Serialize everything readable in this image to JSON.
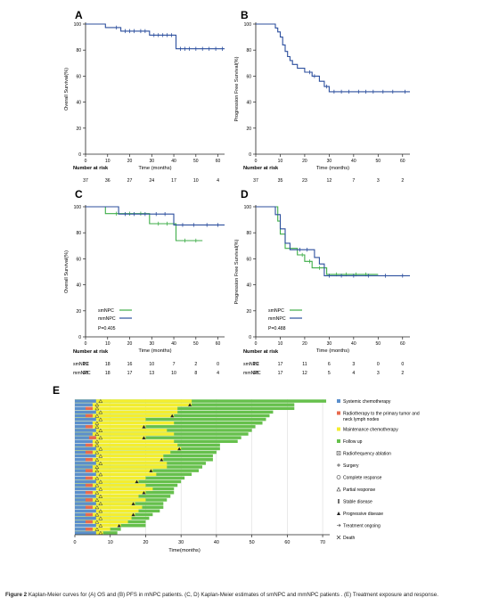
{
  "figure": {
    "caption_lead": "Figure 2",
    "caption_text": "Kaplan-Meier curves for (A) OS and (B) PFS in mNPC patients. (C, D) Kaplan-Meier estimates of smNPC and mmNPC patients . (E) Treatment exposure and response."
  },
  "chart_data": [
    {
      "panel": "A",
      "type": "line",
      "ylabel": "Overall Survival(%)",
      "xlabel": "Time (months)",
      "xlim": [
        0,
        63
      ],
      "ylim": [
        0,
        100
      ],
      "xticks": [
        0,
        10,
        20,
        30,
        40,
        50,
        60
      ],
      "yticks": [
        0,
        20,
        40,
        60,
        80,
        100
      ],
      "risk_title": "Number at risk",
      "risk_rows": [
        {
          "label": "",
          "values": [
            "37",
            "36",
            "27",
            "24",
            "17",
            "10",
            "4"
          ]
        }
      ],
      "series": [
        {
          "color": "#2c4f9e",
          "steps": [
            [
              0,
              100
            ],
            [
              9,
              100
            ],
            [
              9,
              97.3
            ],
            [
              16,
              97.3
            ],
            [
              16,
              94.6
            ],
            [
              29,
              94.6
            ],
            [
              29,
              91.5
            ],
            [
              41,
              91.5
            ],
            [
              41,
              81
            ],
            [
              63,
              81
            ]
          ],
          "censors": [
            [
              14,
              97.3
            ],
            [
              18,
              94.6
            ],
            [
              20,
              94.6
            ],
            [
              22,
              94.6
            ],
            [
              25,
              94.6
            ],
            [
              27,
              94.6
            ],
            [
              31,
              91.5
            ],
            [
              33,
              91.5
            ],
            [
              35,
              91.5
            ],
            [
              37,
              91.5
            ],
            [
              39,
              91.5
            ],
            [
              43,
              81
            ],
            [
              45,
              81
            ],
            [
              47,
              81
            ],
            [
              50,
              81
            ],
            [
              53,
              81
            ],
            [
              56,
              81
            ],
            [
              59,
              81
            ],
            [
              62,
              81
            ]
          ]
        }
      ]
    },
    {
      "panel": "B",
      "type": "line",
      "ylabel": "Progression Free Survival(%)",
      "xlabel": "Time (months)",
      "xlim": [
        0,
        63
      ],
      "ylim": [
        0,
        100
      ],
      "xticks": [
        0,
        10,
        20,
        30,
        40,
        50,
        60
      ],
      "yticks": [
        0,
        20,
        40,
        60,
        80,
        100
      ],
      "risk_title": "Number at risk",
      "risk_rows": [
        {
          "label": "",
          "values": [
            "37",
            "35",
            "23",
            "12",
            "7",
            "3",
            "2"
          ]
        }
      ],
      "series": [
        {
          "color": "#2c4f9e",
          "steps": [
            [
              0,
              100
            ],
            [
              8,
              100
            ],
            [
              8,
              97
            ],
            [
              9,
              97
            ],
            [
              9,
              94
            ],
            [
              10,
              94
            ],
            [
              10,
              90
            ],
            [
              11,
              90
            ],
            [
              11,
              84
            ],
            [
              12,
              84
            ],
            [
              12,
              79
            ],
            [
              13,
              79
            ],
            [
              13,
              75
            ],
            [
              14,
              75
            ],
            [
              14,
              72
            ],
            [
              15,
              72
            ],
            [
              15,
              69
            ],
            [
              17,
              69
            ],
            [
              17,
              66
            ],
            [
              20,
              66
            ],
            [
              20,
              63
            ],
            [
              23,
              63
            ],
            [
              23,
              60
            ],
            [
              26,
              60
            ],
            [
              26,
              56
            ],
            [
              28,
              56
            ],
            [
              28,
              52
            ],
            [
              30,
              52
            ],
            [
              30,
              48
            ],
            [
              63,
              48
            ]
          ],
          "censors": [
            [
              22,
              63
            ],
            [
              24,
              60
            ],
            [
              29,
              52
            ],
            [
              32,
              48
            ],
            [
              35,
              48
            ],
            [
              38,
              48
            ],
            [
              42,
              48
            ],
            [
              45,
              48
            ],
            [
              48,
              48
            ],
            [
              52,
              48
            ],
            [
              56,
              48
            ],
            [
              61,
              48
            ]
          ]
        }
      ]
    },
    {
      "panel": "C",
      "type": "line",
      "ylabel": "Overall Survival(%)",
      "xlabel": "Time (months)",
      "xlim": [
        0,
        63
      ],
      "ylim": [
        0,
        100
      ],
      "xticks": [
        0,
        10,
        20,
        30,
        40,
        50,
        60
      ],
      "yticks": [
        0,
        20,
        40,
        60,
        80,
        100
      ],
      "legend": [
        "smNPC",
        "mmNPC"
      ],
      "pvalue": "P=0.405",
      "risk_title": "Number at risk",
      "risk_rows": [
        {
          "label": "smNPC",
          "values": [
            "19",
            "18",
            "16",
            "10",
            "7",
            "2",
            "0"
          ]
        },
        {
          "label": "mmNPC",
          "values": [
            "18",
            "18",
            "17",
            "13",
            "10",
            "8",
            "4"
          ]
        }
      ],
      "series": [
        {
          "name": "smNPC",
          "color": "#3fae49",
          "steps": [
            [
              0,
              100
            ],
            [
              9,
              100
            ],
            [
              9,
              94.7
            ],
            [
              29,
              94.7
            ],
            [
              29,
              87
            ],
            [
              41,
              87
            ],
            [
              41,
              74
            ],
            [
              53,
              74
            ]
          ],
          "censors": [
            [
              14,
              94.7
            ],
            [
              20,
              94.7
            ],
            [
              25,
              94.7
            ],
            [
              33,
              87
            ],
            [
              37,
              87
            ],
            [
              45,
              74
            ],
            [
              50,
              74
            ]
          ]
        },
        {
          "name": "mmNPC",
          "color": "#2c4f9e",
          "steps": [
            [
              0,
              100
            ],
            [
              15,
              100
            ],
            [
              15,
              94.4
            ],
            [
              40,
              94.4
            ],
            [
              40,
              86
            ],
            [
              63,
              86
            ]
          ],
          "censors": [
            [
              18,
              94.4
            ],
            [
              22,
              94.4
            ],
            [
              27,
              94.4
            ],
            [
              32,
              94.4
            ],
            [
              36,
              94.4
            ],
            [
              44,
              86
            ],
            [
              49,
              86
            ],
            [
              55,
              86
            ],
            [
              60,
              86
            ]
          ]
        }
      ]
    },
    {
      "panel": "D",
      "type": "line",
      "ylabel": "Progression Free Survival(%)",
      "xlabel": "Time (months)",
      "xlim": [
        0,
        63
      ],
      "ylim": [
        0,
        100
      ],
      "xticks": [
        0,
        10,
        20,
        30,
        40,
        50,
        60
      ],
      "yticks": [
        0,
        20,
        40,
        60,
        80,
        100
      ],
      "legend": [
        "smNPC",
        "mmNPC"
      ],
      "pvalue": "P=0.488",
      "risk_title": "Number at risk",
      "risk_rows": [
        {
          "label": "smNPC",
          "values": [
            "19",
            "17",
            "11",
            "6",
            "3",
            "0",
            "0"
          ]
        },
        {
          "label": "mmNPC",
          "values": [
            "18",
            "17",
            "12",
            "5",
            "4",
            "3",
            "2"
          ]
        }
      ],
      "series": [
        {
          "name": "smNPC",
          "color": "#3fae49",
          "steps": [
            [
              0,
              100
            ],
            [
              9,
              100
            ],
            [
              9,
              89
            ],
            [
              10,
              89
            ],
            [
              10,
              79
            ],
            [
              12,
              79
            ],
            [
              12,
              68
            ],
            [
              17,
              68
            ],
            [
              17,
              63
            ],
            [
              20,
              63
            ],
            [
              20,
              58
            ],
            [
              23,
              58
            ],
            [
              23,
              53
            ],
            [
              29,
              53
            ],
            [
              29,
              48
            ],
            [
              50,
              48
            ]
          ],
          "censors": [
            [
              19,
              63
            ],
            [
              22,
              58
            ],
            [
              26,
              53
            ],
            [
              33,
              48
            ],
            [
              37,
              48
            ],
            [
              41,
              48
            ],
            [
              45,
              48
            ]
          ]
        },
        {
          "name": "mmNPC",
          "color": "#2c4f9e",
          "steps": [
            [
              0,
              100
            ],
            [
              8,
              100
            ],
            [
              8,
              94
            ],
            [
              10,
              94
            ],
            [
              10,
              83
            ],
            [
              12,
              83
            ],
            [
              12,
              72
            ],
            [
              14,
              72
            ],
            [
              14,
              67
            ],
            [
              24,
              67
            ],
            [
              24,
              61
            ],
            [
              26,
              61
            ],
            [
              26,
              56
            ],
            [
              28,
              56
            ],
            [
              28,
              47
            ],
            [
              63,
              47
            ]
          ],
          "censors": [
            [
              18,
              67
            ],
            [
              21,
              67
            ],
            [
              30,
              47
            ],
            [
              35,
              47
            ],
            [
              40,
              47
            ],
            [
              46,
              47
            ],
            [
              53,
              47
            ],
            [
              60,
              47
            ]
          ]
        }
      ]
    },
    {
      "panel": "E",
      "type": "bar",
      "xlabel": "Time(months)",
      "xlim": [
        0,
        72
      ],
      "xticks": [
        0,
        10,
        20,
        30,
        40,
        50,
        60,
        70
      ],
      "legend": [
        {
          "label": "Systemic chemotherapy",
          "kind": "square",
          "color": "#5b8fcc"
        },
        {
          "label": "Radiotherapy to the primary tumor and neck lymph nodes",
          "kind": "square",
          "color": "#e86a4d"
        },
        {
          "label": "Maintenance chemotherapy",
          "kind": "square",
          "color": "#f4ee2f"
        },
        {
          "label": "Follow up",
          "kind": "square",
          "color": "#66c04c"
        },
        {
          "label": "Radiofrequency ablation",
          "kind": "xsquare",
          "color": "#555555"
        },
        {
          "label": "Surgery",
          "kind": "plus",
          "color": "#444444"
        },
        {
          "label": "Complete response",
          "kind": "circle",
          "color": "#333333"
        },
        {
          "label": "Partial response",
          "kind": "triangle-open",
          "color": "#333333"
        },
        {
          "label": "Stable disease",
          "kind": "bar",
          "color": "#333333"
        },
        {
          "label": "Progressive disease",
          "kind": "triangle-filled",
          "color": "#222222"
        },
        {
          "label": "Treatment ongoing",
          "kind": "arrow",
          "color": "#333333"
        },
        {
          "label": "Death",
          "kind": "x",
          "color": "#333333"
        }
      ],
      "patients": [
        {
          "chemo": 6,
          "radio": 0,
          "maint": 33,
          "end": 71
        },
        {
          "chemo": 5,
          "radio": 0,
          "maint": 33,
          "end": 62
        },
        {
          "chemo": 5,
          "radio": 2,
          "maint": 29,
          "end": 62
        },
        {
          "chemo": 6,
          "radio": 0,
          "maint": 29,
          "end": 56
        },
        {
          "chemo": 5,
          "radio": 2,
          "maint": 28,
          "end": 55
        },
        {
          "chemo": 6,
          "radio": 0,
          "maint": 20,
          "end": 54
        },
        {
          "chemo": 5,
          "radio": 0,
          "maint": 28,
          "end": 53
        },
        {
          "chemo": 5,
          "radio": 2,
          "maint": 20,
          "end": 51
        },
        {
          "chemo": 6,
          "radio": 0,
          "maint": 26,
          "end": 50
        },
        {
          "chemo": 5,
          "radio": 0,
          "maint": 28,
          "end": 49
        },
        {
          "chemo": 6,
          "radio": 2,
          "maint": 20,
          "end": 47
        },
        {
          "chemo": 5,
          "radio": 0,
          "maint": 28,
          "end": 46
        },
        {
          "chemo": 5,
          "radio": 2,
          "maint": 29,
          "end": 41
        },
        {
          "chemo": 6,
          "radio": 0,
          "maint": 30,
          "end": 41
        },
        {
          "chemo": 5,
          "radio": 2,
          "maint": 27,
          "end": 40
        },
        {
          "chemo": 6,
          "radio": 0,
          "maint": 25,
          "end": 39
        },
        {
          "chemo": 5,
          "radio": 2,
          "maint": 25,
          "end": 39
        },
        {
          "chemo": 6,
          "radio": 0,
          "maint": 26,
          "end": 37
        },
        {
          "chemo": 5,
          "radio": 0,
          "maint": 26,
          "end": 36
        },
        {
          "chemo": 5,
          "radio": 2,
          "maint": 22,
          "end": 35
        },
        {
          "chemo": 6,
          "radio": 0,
          "maint": 23,
          "end": 33
        },
        {
          "chemo": 5,
          "radio": 2,
          "maint": 20,
          "end": 31
        },
        {
          "chemo": 6,
          "radio": 0,
          "maint": 18,
          "end": 30
        },
        {
          "chemo": 5,
          "radio": 2,
          "maint": 20,
          "end": 29
        },
        {
          "chemo": 6,
          "radio": 0,
          "maint": 22,
          "end": 28
        },
        {
          "chemo": 5,
          "radio": 2,
          "maint": 20,
          "end": 28
        },
        {
          "chemo": 6,
          "radio": 0,
          "maint": 18,
          "end": 27
        },
        {
          "chemo": 5,
          "radio": 2,
          "maint": 20,
          "end": 26
        },
        {
          "chemo": 6,
          "radio": 0,
          "maint": 17,
          "end": 25
        },
        {
          "chemo": 5,
          "radio": 2,
          "maint": 19,
          "end": 25
        },
        {
          "chemo": 6,
          "radio": 0,
          "maint": 18,
          "end": 24
        },
        {
          "chemo": 5,
          "radio": 2,
          "maint": 17,
          "end": 22
        },
        {
          "chemo": 6,
          "radio": 0,
          "maint": 16,
          "end": 21
        },
        {
          "chemo": 5,
          "radio": 2,
          "maint": 15,
          "end": 20
        },
        {
          "chemo": 6,
          "radio": 0,
          "maint": 13,
          "end": 20
        },
        {
          "chemo": 5,
          "radio": 2,
          "maint": 10,
          "end": 13
        },
        {
          "chemo": 6,
          "radio": 0,
          "maint": 8,
          "end": 12
        }
      ]
    }
  ]
}
